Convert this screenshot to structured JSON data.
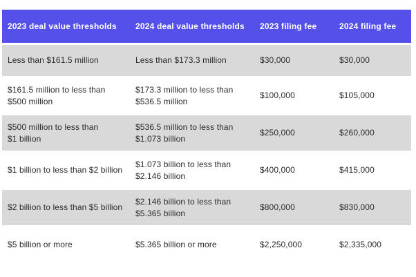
{
  "colors": {
    "header-bg": "#5450e9",
    "header-text": "#ffffff",
    "row-alt-bg": "#d9d9d9",
    "body-text": "#2b2b2b",
    "page-bg": "#ffffff"
  },
  "chart_data": {
    "type": "table",
    "title": "",
    "columns": [
      "2023 deal value thresholds",
      "2024 deal value thresholds",
      "2023 filing fee",
      "2024 filing fee"
    ],
    "rows": [
      [
        "Less than $161.5 million",
        "Less than $173.3 million",
        "$30,000",
        "$30,000"
      ],
      [
        "$161.5 million to less than\n$500 million",
        "$173.3 million to less than\n$536.5 million",
        "$100,000",
        "$105,000"
      ],
      [
        "$500 million to less than\n$1 billion",
        "$536.5 million to less than\n$1.073 billion",
        "$250,000",
        "$260,000"
      ],
      [
        "$1 billion to less than $2 billion",
        "$1.073 billion to less than\n$2.146 billion",
        "$400,000",
        "$415,000"
      ],
      [
        "$2 billion to less than $5 billion",
        "$2.146 billion to less than\n$5.365 billion",
        "$800,000",
        "$830,000"
      ],
      [
        "$5 billion or more",
        "$5.365 billion or more",
        "$2,250,000",
        "$2,335,000"
      ]
    ],
    "layout": {
      "header_position": "top",
      "row_striping": "odd-rows-gray",
      "grid": false
    }
  }
}
